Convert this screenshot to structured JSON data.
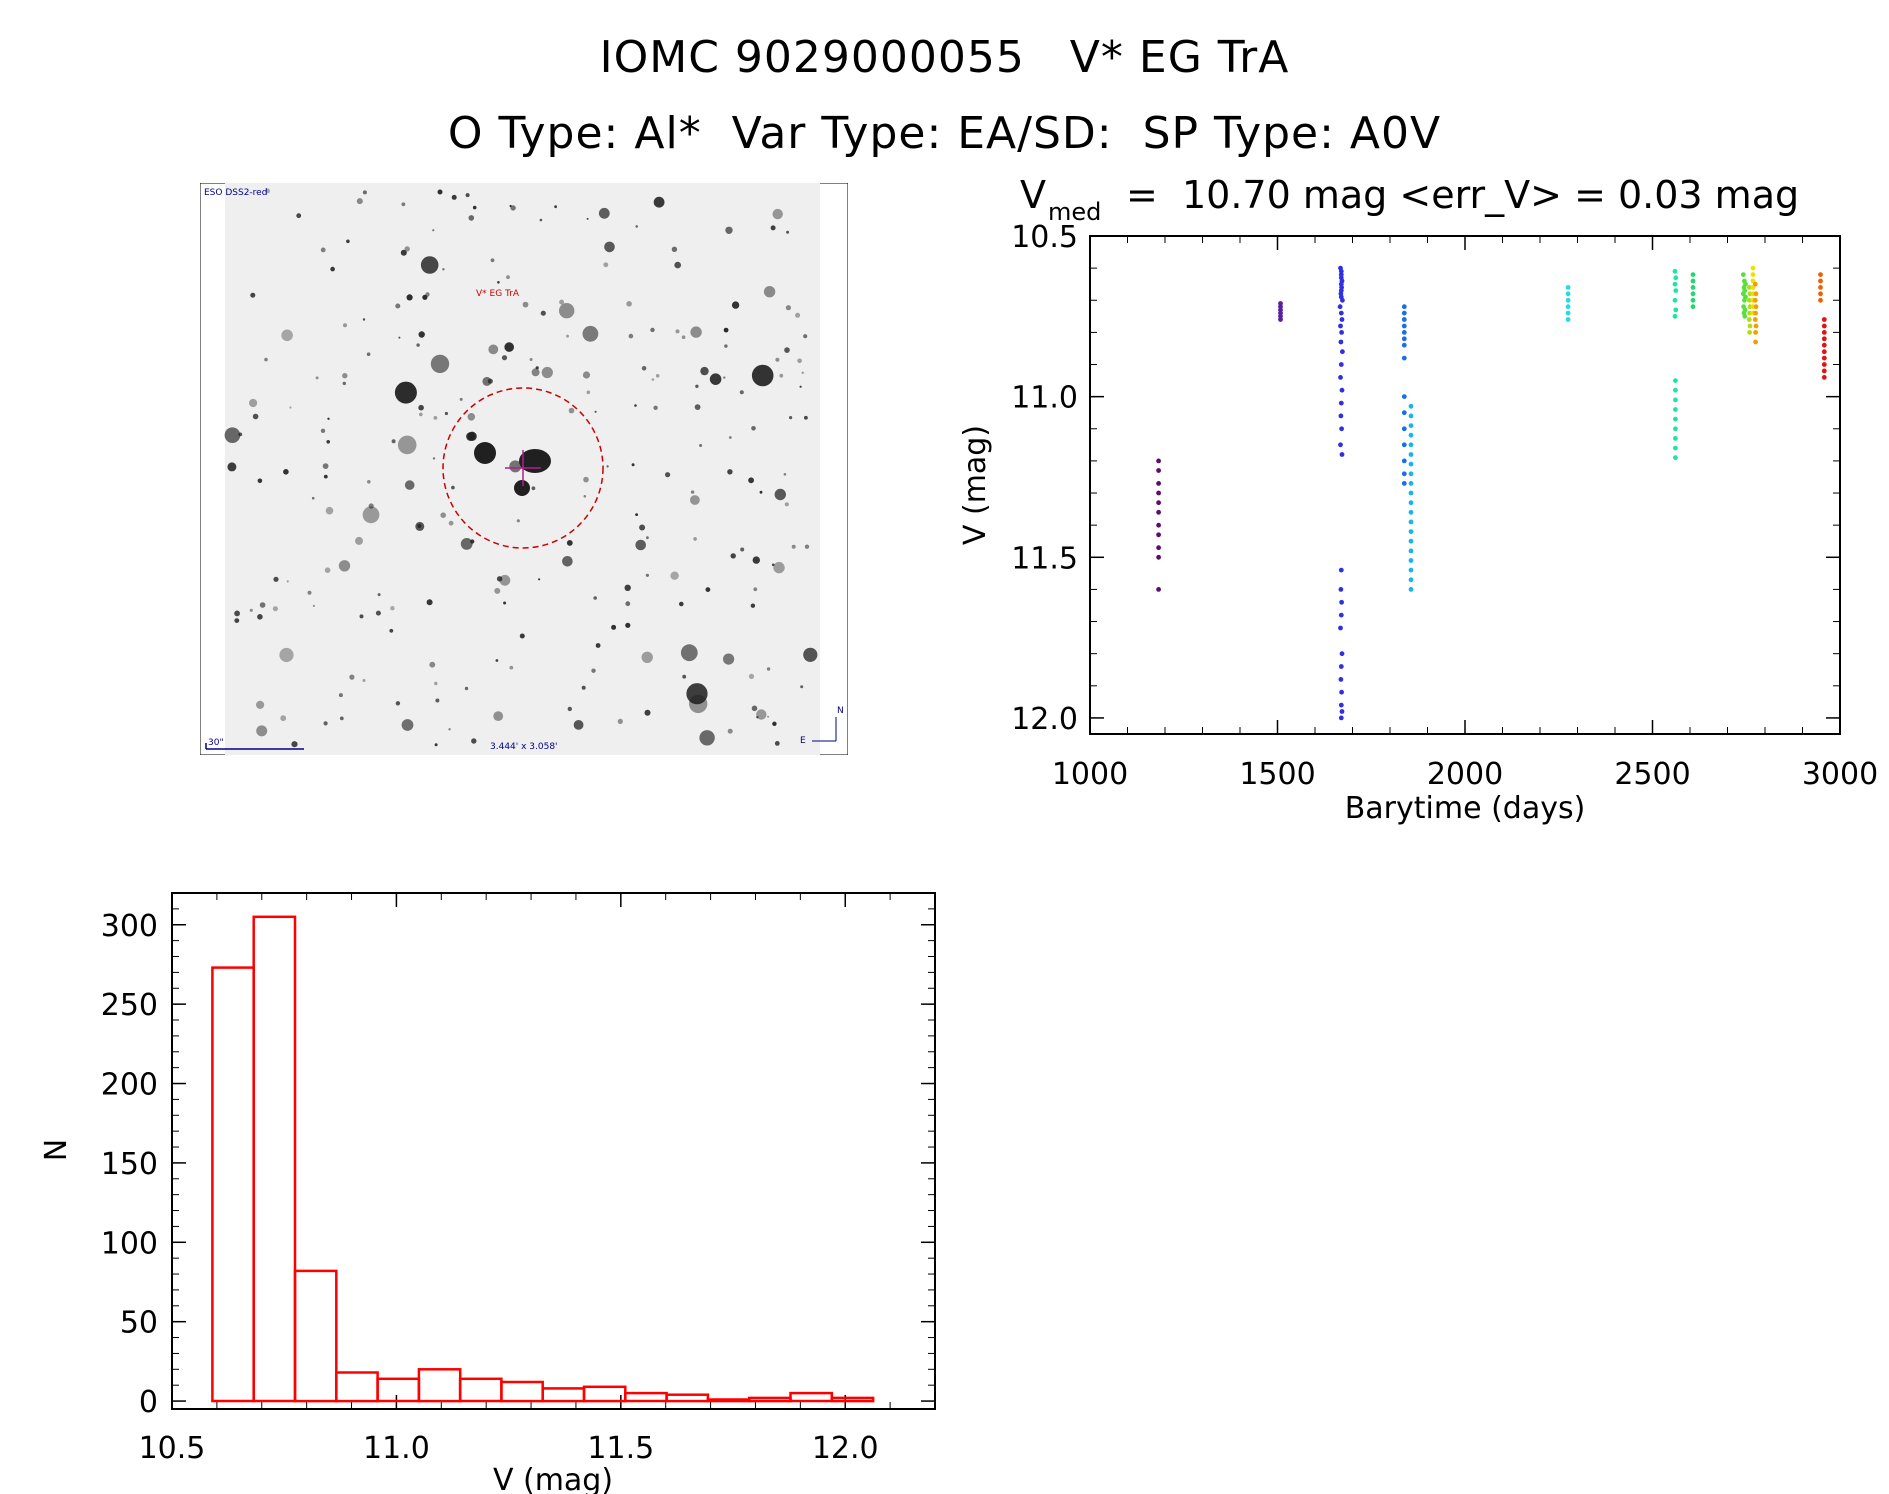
{
  "titles": {
    "line1": "IOMC 9029000055   V* EG TrA",
    "line2": "O Type: Al*  Var Type: EA/SD:  SP Type: A0V"
  },
  "finder": {
    "survey_label": "ESO DSS2-red",
    "target_label": "V* EG TrA",
    "scale_label": "30\"",
    "fov_label": "3.444' x 3.058'",
    "north_label": "N",
    "east_label": "E",
    "image_colors": {
      "background": "#efefef",
      "star": "#202020",
      "circle": "#cc0000",
      "annot": "#00008b"
    }
  },
  "chart_data": [
    {
      "type": "scatter",
      "title_main": "V",
      "title_sub": "med",
      "title_rest": "=  10.70 mag <err_V> = 0.03 mag",
      "xlabel": "Barytime (days)",
      "ylabel": "V (mag)",
      "xlim": [
        1000,
        3000
      ],
      "ylim": [
        12.05,
        10.5
      ],
      "y_inverted": true,
      "xticks": [
        1000,
        1500,
        2000,
        2500,
        3000
      ],
      "xtick_labels": [
        "1000",
        "1500",
        "2000",
        "2500",
        "3000"
      ],
      "yticks": [
        10.5,
        11.0,
        11.5,
        12.0
      ],
      "ytick_labels": [
        "10.5",
        "11.0",
        "11.5",
        "12.0"
      ],
      "series": [
        {
          "name": "s1",
          "color": "#5a0d6e",
          "x": [
            1183,
            1183,
            1183,
            1183,
            1183,
            1183,
            1183,
            1183,
            1183,
            1183,
            1183
          ],
          "y": [
            11.2,
            11.23,
            11.27,
            11.3,
            11.33,
            11.36,
            11.4,
            11.43,
            11.47,
            11.5,
            11.6
          ]
        },
        {
          "name": "s2",
          "color": "#5a1ea0",
          "x": [
            1508,
            1508,
            1508,
            1508,
            1508,
            1508
          ],
          "y": [
            10.71,
            10.72,
            10.73,
            10.74,
            10.75,
            10.76
          ]
        },
        {
          "name": "s3",
          "color": "#3030e0",
          "x": [
            1668,
            1670,
            1672,
            1671,
            1669,
            1673,
            1667,
            1670,
            1672,
            1668,
            1671,
            1669,
            1673,
            1670,
            1668,
            1672,
            1670,
            1669,
            1671,
            1668,
            1672,
            1670,
            1669,
            1671,
            1670,
            1668,
            1672,
            1670,
            1669,
            1671,
            1670,
            1672,
            1670,
            1670,
            1670,
            1670,
            1670,
            1670
          ],
          "y": [
            10.6,
            10.62,
            10.64,
            10.66,
            10.68,
            10.7,
            10.72,
            10.74,
            10.76,
            10.78,
            10.8,
            10.83,
            10.86,
            10.9,
            10.94,
            10.98,
            11.02,
            11.06,
            11.1,
            11.15,
            11.18,
            11.54,
            11.6,
            11.64,
            11.68,
            11.72,
            11.8,
            11.84,
            11.88,
            11.92,
            11.96,
            11.98,
            12.0,
            10.61,
            10.63,
            10.65,
            10.67,
            10.69
          ]
        },
        {
          "name": "s4",
          "color": "#1a6ee8",
          "x": [
            1838,
            1838,
            1838,
            1838,
            1838,
            1838,
            1838,
            1838,
            1838,
            1838,
            1838,
            1838,
            1838,
            1838,
            1838
          ],
          "y": [
            10.72,
            10.74,
            10.76,
            10.78,
            10.8,
            10.82,
            10.84,
            10.88,
            11.0,
            11.05,
            11.1,
            11.15,
            11.2,
            11.24,
            11.27
          ]
        },
        {
          "name": "s5",
          "color": "#18b4ec",
          "x": [
            1856,
            1856,
            1856,
            1856,
            1856,
            1856,
            1856,
            1856,
            1856,
            1856,
            1856,
            1856,
            1856,
            1856,
            1856,
            1856,
            1856,
            1856,
            1856,
            1856
          ],
          "y": [
            11.03,
            11.06,
            11.09,
            11.12,
            11.15,
            11.18,
            11.21,
            11.24,
            11.27,
            11.3,
            11.33,
            11.36,
            11.39,
            11.42,
            11.45,
            11.48,
            11.51,
            11.54,
            11.57,
            11.6
          ]
        },
        {
          "name": "s6",
          "color": "#22dce8",
          "x": [
            2275,
            2275,
            2275,
            2275,
            2275,
            2275
          ],
          "y": [
            10.66,
            10.68,
            10.7,
            10.72,
            10.74,
            10.76
          ]
        },
        {
          "name": "s7",
          "color": "#1ee6a0",
          "x": [
            2560,
            2562,
            2560,
            2562,
            2560,
            2562,
            2560,
            2561,
            2561,
            2561,
            2561,
            2561,
            2561,
            2561,
            2561,
            2561
          ],
          "y": [
            10.61,
            10.63,
            10.65,
            10.67,
            10.7,
            10.73,
            10.75,
            10.95,
            10.98,
            11.01,
            11.04,
            11.07,
            11.1,
            11.13,
            11.16,
            11.19
          ]
        },
        {
          "name": "s8",
          "color": "#22d870",
          "x": [
            2608,
            2608,
            2608,
            2608,
            2608,
            2608
          ],
          "y": [
            10.62,
            10.64,
            10.66,
            10.68,
            10.7,
            10.72
          ]
        },
        {
          "name": "s9",
          "color": "#5ae03c",
          "x": [
            2742,
            2745,
            2748,
            2744,
            2746,
            2742,
            2748,
            2745,
            2743,
            2747,
            2744,
            2746
          ],
          "y": [
            10.62,
            10.64,
            10.65,
            10.66,
            10.67,
            10.68,
            10.69,
            10.7,
            10.72,
            10.73,
            10.74,
            10.75
          ]
        },
        {
          "name": "s10",
          "color": "#b4dc14",
          "x": [
            2758,
            2760,
            2758,
            2760,
            2759,
            2758,
            2760,
            2759
          ],
          "y": [
            10.66,
            10.68,
            10.7,
            10.72,
            10.74,
            10.76,
            10.78,
            10.8
          ]
        },
        {
          "name": "s11",
          "color": "#f0e000",
          "x": [
            2768,
            2768,
            2768,
            2768,
            2768,
            2768,
            2768,
            2768
          ],
          "y": [
            10.6,
            10.62,
            10.64,
            10.66,
            10.68,
            10.7,
            10.72,
            10.74
          ]
        },
        {
          "name": "s12",
          "color": "#f0a000",
          "x": [
            2774,
            2776,
            2774,
            2776,
            2775,
            2774,
            2776,
            2775,
            2775
          ],
          "y": [
            10.65,
            10.68,
            10.7,
            10.72,
            10.74,
            10.76,
            10.78,
            10.8,
            10.83
          ]
        },
        {
          "name": "s13",
          "color": "#f06000",
          "x": [
            2948,
            2948,
            2948,
            2948,
            2948
          ],
          "y": [
            10.62,
            10.64,
            10.66,
            10.68,
            10.7
          ]
        },
        {
          "name": "s14",
          "color": "#e01414",
          "x": [
            2958,
            2958,
            2958,
            2958,
            2958,
            2958,
            2958,
            2958,
            2958,
            2958
          ],
          "y": [
            10.76,
            10.78,
            10.8,
            10.82,
            10.84,
            10.86,
            10.88,
            10.9,
            10.92,
            10.94
          ]
        }
      ]
    },
    {
      "type": "bar",
      "subtype": "histogram",
      "xlabel": "V (mag)",
      "ylabel": "N",
      "xlim": [
        10.5,
        12.2
      ],
      "ylim": [
        -5,
        320
      ],
      "xticks": [
        10.5,
        11.0,
        11.5,
        12.0
      ],
      "xtick_labels": [
        "10.5",
        "11.0",
        "11.5",
        "12.0"
      ],
      "yticks": [
        0,
        50,
        100,
        150,
        200,
        250,
        300
      ],
      "ytick_labels": [
        "0",
        "50",
        "100",
        "150",
        "200",
        "250",
        "300"
      ],
      "bar_color": "#ff0000",
      "bin_edges": [
        10.59,
        10.682,
        10.774,
        10.866,
        10.958,
        11.05,
        11.142,
        11.234,
        11.326,
        11.418,
        11.51,
        11.602,
        11.694,
        11.786,
        11.878,
        11.97,
        12.062
      ],
      "values": [
        273,
        305,
        82,
        18,
        14,
        20,
        14,
        12,
        8,
        9,
        5,
        4,
        1,
        2,
        5,
        2
      ]
    }
  ]
}
